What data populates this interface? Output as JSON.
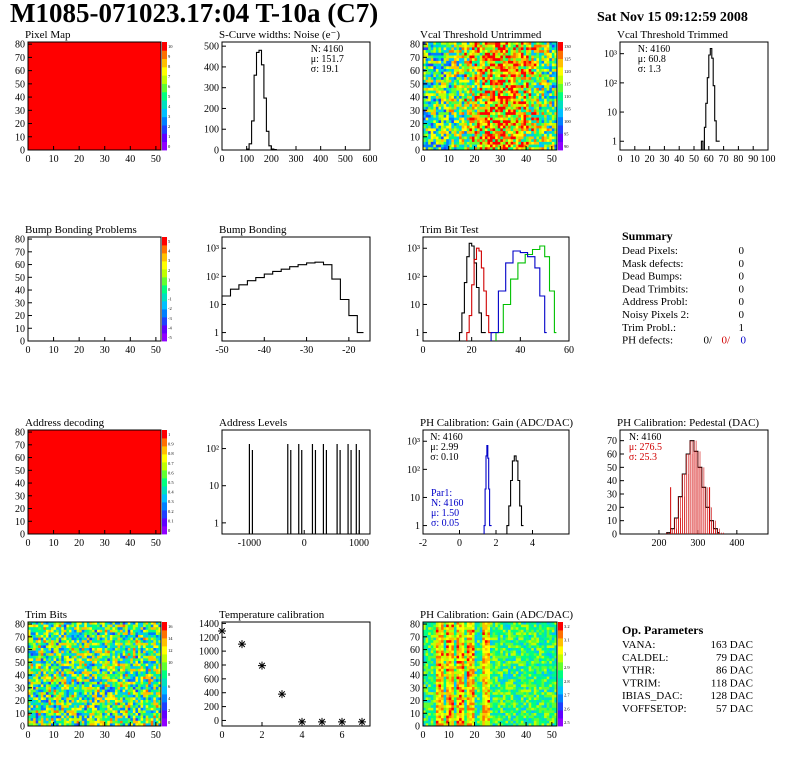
{
  "title": "M1085-071023.17:04 T-10a (C7)",
  "date": "Sat Nov 15 09:12:59 2008",
  "colors": {
    "red_fill": "#ff0000",
    "hist_black": "#000000",
    "hist_red": "#cc0000",
    "hist_green": "#00cc00",
    "hist_blue": "#0000cc"
  },
  "chart_data": [
    {
      "id": "pixelmap",
      "type": "heatmap",
      "title": "Pixel Map",
      "xticks": [
        "0",
        "10",
        "20",
        "30",
        "40",
        "50"
      ],
      "yticks": [
        "0",
        "10",
        "20",
        "30",
        "40",
        "50",
        "60",
        "70",
        "80"
      ],
      "zticks": [
        "10",
        "9",
        "8",
        "7",
        "6",
        "5",
        "4",
        "3",
        "2",
        "1",
        "0"
      ],
      "fill": "uniform-red"
    },
    {
      "id": "scurve",
      "type": "line",
      "title": "S-Curve widths: Noise (e⁻)",
      "xticks": [
        "0",
        "100",
        "200",
        "300",
        "400",
        "500",
        "600"
      ],
      "yticks": [
        "0",
        "100",
        "200",
        "300",
        "400",
        "500"
      ],
      "xlim": [
        0,
        600
      ],
      "ylim": [
        0,
        520
      ],
      "stats": [
        "N: 4160",
        "μ: 151.7",
        "σ: 19.1"
      ],
      "series": [
        {
          "x": [
            90,
            100,
            110,
            120,
            130,
            140,
            150,
            160,
            170,
            180,
            190,
            200,
            210,
            220
          ],
          "y": [
            0,
            5,
            30,
            140,
            360,
            470,
            480,
            410,
            250,
            90,
            20,
            5,
            2,
            0
          ]
        }
      ]
    },
    {
      "id": "vcal_untrimmed",
      "type": "heatmap",
      "title": "Vcal Threshold Untrimmed",
      "xticks": [
        "0",
        "10",
        "20",
        "30",
        "40",
        "50"
      ],
      "yticks": [
        "0",
        "10",
        "20",
        "30",
        "40",
        "50",
        "60",
        "70",
        "80"
      ],
      "zticks": [
        "130",
        "125",
        "120",
        "115",
        "110",
        "105",
        "100",
        "95",
        "90"
      ],
      "fill": "random-noise"
    },
    {
      "id": "vcal_trimmed",
      "type": "line",
      "title": "Vcal Threshold Trimmed",
      "xticks": [
        "0",
        "10",
        "20",
        "30",
        "40",
        "50",
        "60",
        "70",
        "80",
        "90",
        "100"
      ],
      "yticks": [
        "1",
        "10",
        "10²",
        "10³"
      ],
      "xlim": [
        0,
        100
      ],
      "log": true,
      "stats": [
        "N: 4160",
        "μ: 60.8",
        "σ: 1.3"
      ],
      "series": [
        {
          "x": [
            55,
            56,
            57,
            58,
            59,
            60,
            61,
            62,
            63,
            64,
            65,
            66
          ],
          "y": [
            1,
            0,
            3,
            20,
            150,
            900,
            1500,
            700,
            80,
            5,
            1,
            1
          ]
        }
      ]
    },
    {
      "id": "bump_problems",
      "type": "heatmap",
      "title": "Bump Bonding Problems",
      "xticks": [
        "0",
        "10",
        "20",
        "30",
        "40",
        "50"
      ],
      "yticks": [
        "0",
        "10",
        "20",
        "30",
        "40",
        "50",
        "60",
        "70",
        "80"
      ],
      "zticks": [
        "5",
        "4",
        "3",
        "2",
        "1",
        "0",
        "-1",
        "-2",
        "-3",
        "-4",
        "-5"
      ],
      "fill": "empty"
    },
    {
      "id": "bump_bonding",
      "type": "line",
      "title": "Bump Bonding",
      "xticks": [
        "-50",
        "-40",
        "-30",
        "-20"
      ],
      "yticks": [
        "1",
        "10",
        "10²",
        "10³"
      ],
      "xlim": [
        -50,
        -15
      ],
      "log": true,
      "series": [
        {
          "x": [
            -50,
            -48,
            -46,
            -44,
            -42,
            -40,
            -38,
            -36,
            -34,
            -32,
            -30,
            -28,
            -26,
            -24,
            -22,
            -20,
            -18,
            -17
          ],
          "y": [
            20,
            35,
            50,
            70,
            90,
            120,
            150,
            180,
            220,
            260,
            300,
            320,
            260,
            80,
            15,
            4,
            1,
            1
          ]
        }
      ]
    },
    {
      "id": "trim_bit_test",
      "type": "line",
      "title": "Trim Bit Test",
      "xticks": [
        "0",
        "20",
        "40",
        "60"
      ],
      "yticks": [
        "1",
        "10",
        "10²",
        "10³"
      ],
      "xlim": [
        0,
        60
      ],
      "log": true,
      "series": [
        {
          "color": "black",
          "x": [
            15,
            16,
            17,
            18,
            19,
            20,
            21,
            22,
            23,
            24,
            25
          ],
          "y": [
            1,
            5,
            60,
            500,
            1500,
            1200,
            300,
            40,
            5,
            1,
            1
          ]
        },
        {
          "color": "red",
          "x": [
            18,
            19,
            20,
            21,
            22,
            23,
            24,
            25,
            26,
            27,
            28
          ],
          "y": [
            1,
            4,
            50,
            400,
            1000,
            800,
            200,
            30,
            4,
            1,
            1
          ]
        },
        {
          "color": "green",
          "x": [
            30,
            33,
            36,
            39,
            42,
            45,
            48,
            50,
            52,
            54
          ],
          "y": [
            1,
            10,
            80,
            300,
            600,
            900,
            1200,
            500,
            30,
            1
          ]
        },
        {
          "color": "blue",
          "x": [
            28,
            31,
            34,
            37,
            40,
            43,
            46,
            48,
            50
          ],
          "y": [
            1,
            30,
            300,
            800,
            700,
            500,
            200,
            20,
            1
          ]
        }
      ]
    },
    {
      "id": "summary",
      "type": "table",
      "title": "Summary",
      "rows": [
        {
          "label": "Dead Pixels:",
          "value": "0"
        },
        {
          "label": "Mask defects:",
          "value": "0"
        },
        {
          "label": "Dead Bumps:",
          "value": "0"
        },
        {
          "label": "Dead Trimbits:",
          "value": "0"
        },
        {
          "label": "Address Probl:",
          "value": "0"
        },
        {
          "label": "Noisy Pixels 2:",
          "value": "0"
        },
        {
          "label": "Trim Probl.:",
          "value": "1"
        }
      ],
      "ph_defects": {
        "label": "PH defects:",
        "values": [
          "0/",
          "0/",
          "0"
        ]
      }
    },
    {
      "id": "address_decoding",
      "type": "heatmap",
      "title": "Address decoding",
      "xticks": [
        "0",
        "10",
        "20",
        "30",
        "40",
        "50"
      ],
      "yticks": [
        "0",
        "10",
        "20",
        "30",
        "40",
        "50",
        "60",
        "70",
        "80"
      ],
      "zticks": [
        "1",
        "0.9",
        "0.8",
        "0.7",
        "0.6",
        "0.5",
        "0.4",
        "0.3",
        "0.2",
        "0.1",
        "0"
      ],
      "fill": "uniform-red"
    },
    {
      "id": "address_levels",
      "type": "line",
      "title": "Address Levels",
      "xticks": [
        "-1000",
        "0",
        "1000"
      ],
      "yticks": [
        "1",
        "10",
        "10²"
      ],
      "xlim": [
        -1500,
        1200
      ],
      "log": true,
      "spikes": [
        -1000,
        -300,
        -100,
        150,
        350,
        600,
        800,
        950
      ]
    },
    {
      "id": "ph_gain",
      "type": "line",
      "title": "PH Calibration: Gain (ADC/DAC)",
      "xticks": [
        "-2",
        "0",
        "2",
        "4"
      ],
      "yticks": [
        "1",
        "10",
        "10²",
        "10³"
      ],
      "xlim": [
        -2,
        6
      ],
      "log": true,
      "stats": [
        "N: 4160",
        "μ: 2.99",
        "σ: 0.10"
      ],
      "par1_stats": [
        "Par1:",
        "N: 4160",
        "μ: 1.50",
        "σ: 0.05"
      ],
      "series": [
        {
          "color": "black",
          "x": [
            2.6,
            2.7,
            2.8,
            2.9,
            3.0,
            3.1,
            3.2,
            3.3,
            3.4
          ],
          "y": [
            1,
            5,
            40,
            200,
            300,
            200,
            40,
            5,
            1
          ]
        },
        {
          "color": "blue",
          "x": [
            1.35,
            1.4,
            1.45,
            1.5,
            1.55,
            1.6,
            1.65
          ],
          "y": [
            1,
            20,
            300,
            700,
            250,
            20,
            1
          ]
        }
      ]
    },
    {
      "id": "ph_pedestal",
      "type": "line",
      "title": "PH Calibration: Pedestal (DAC)",
      "xticks": [
        "200",
        "300",
        "400"
      ],
      "yticks": [
        "0",
        "10",
        "20",
        "30",
        "40",
        "50",
        "60",
        "70"
      ],
      "xlim": [
        100,
        480
      ],
      "ylim": [
        0,
        78
      ],
      "stats": [
        "N: 4160",
        "μ: 276.5",
        "σ: 25.3"
      ],
      "series": [
        {
          "x": [
            220,
            230,
            240,
            250,
            260,
            270,
            280,
            290,
            300,
            310,
            320,
            330,
            340,
            350
          ],
          "y": [
            1,
            4,
            12,
            28,
            45,
            60,
            70,
            62,
            50,
            35,
            20,
            10,
            4,
            1
          ]
        }
      ]
    },
    {
      "id": "trim_bits",
      "type": "heatmap",
      "title": "Trim Bits",
      "xticks": [
        "0",
        "10",
        "20",
        "30",
        "40",
        "50"
      ],
      "yticks": [
        "0",
        "10",
        "20",
        "30",
        "40",
        "50",
        "60",
        "70",
        "80"
      ],
      "zticks": [
        "16",
        "14",
        "12",
        "10",
        "8",
        "6",
        "4",
        "2",
        "0"
      ],
      "fill": "random-noise"
    },
    {
      "id": "temperature",
      "type": "scatter",
      "title": "Temperature calibration",
      "xticks": [
        "0",
        "2",
        "4",
        "6"
      ],
      "yticks": [
        "0",
        "200",
        "400",
        "600",
        "800",
        "1000",
        "1200",
        "1400"
      ],
      "xlim": [
        0,
        7.4
      ],
      "ylim": [
        -80,
        1420
      ],
      "x": [
        0,
        1,
        2,
        3,
        4,
        5,
        6,
        7
      ],
      "y": [
        1290,
        1100,
        790,
        380,
        -20,
        -20,
        -20,
        -20
      ]
    },
    {
      "id": "ph_gain_map",
      "type": "heatmap",
      "title": "PH Calibration: Gain (ADC/DAC)",
      "xticks": [
        "0",
        "10",
        "20",
        "30",
        "40",
        "50"
      ],
      "yticks": [
        "0",
        "10",
        "20",
        "30",
        "40",
        "50",
        "60",
        "70",
        "80"
      ],
      "zticks": [
        "3.2",
        "3.1",
        "3",
        "2.9",
        "2.8",
        "2.7",
        "2.6",
        "2.5"
      ],
      "fill": "column-stripes"
    },
    {
      "id": "op_params",
      "type": "table",
      "title": "Op. Parameters",
      "rows": [
        {
          "label": "VANA:",
          "value": "163 DAC"
        },
        {
          "label": "CALDEL:",
          "value": "79 DAC"
        },
        {
          "label": "VTHR:",
          "value": "86 DAC"
        },
        {
          "label": "VTRIM:",
          "value": "118 DAC"
        },
        {
          "label": "IBIAS_DAC:",
          "value": "128 DAC"
        },
        {
          "label": "VOFFSETOP:",
          "value": "57 DAC"
        }
      ]
    }
  ]
}
